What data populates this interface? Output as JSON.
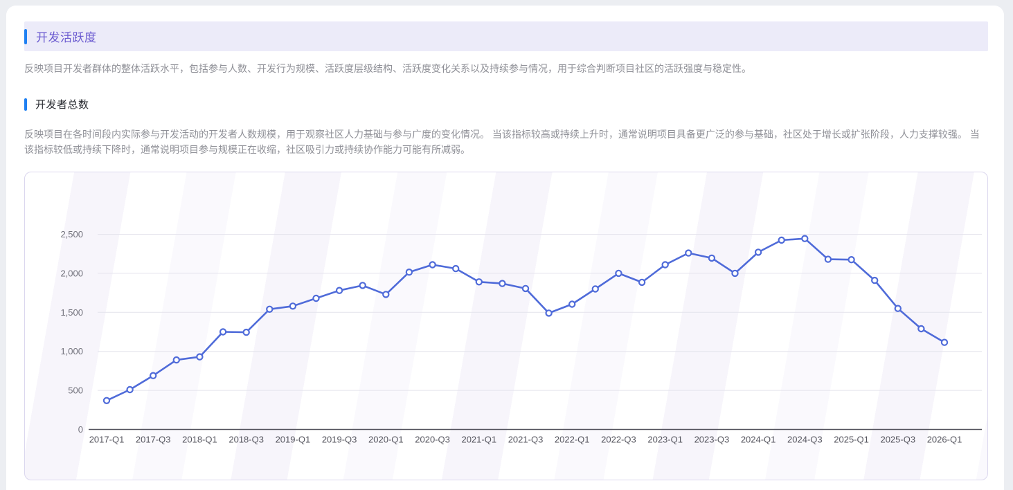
{
  "page": {
    "background_color": "#eceef2",
    "card_background_color": "#ffffff"
  },
  "section": {
    "title": "开发活跃度",
    "title_color": "#6a5ad0",
    "banner_background": "#ecebf9",
    "accent_color": "#1f80f2",
    "description": "反映项目开发者群体的整体活跃水平，包括参与人数、开发行为规模、活跃度层级结构、活跃度变化关系以及持续参与情况，用于综合判断项目社区的活跃强度与稳定性。"
  },
  "metric": {
    "title": "开发者总数",
    "description": "反映项目在各时间段内实际参与开发活动的开发者人数规模，用于观察社区人力基础与参与广度的变化情况。 当该指标较高或持续上升时，通常说明项目具备更广泛的参与基础，社区处于增长或扩张阶段，人力支撑较强。 当该指标较低或持续下降时，通常说明项目参与规模正在收缩，社区吸引力或持续协作能力可能有所减弱。"
  },
  "chart_data": {
    "type": "line",
    "title": "",
    "xlabel": "",
    "ylabel": "",
    "ylim": [
      0,
      2500
    ],
    "yticks": [
      0,
      500,
      1000,
      1500,
      2000,
      2500
    ],
    "grid": true,
    "line_color": "#4f6bd9",
    "marker_fill": "#ffffff",
    "x": [
      "2017-Q1",
      "2017-Q2",
      "2017-Q3",
      "2017-Q4",
      "2018-Q1",
      "2018-Q2",
      "2018-Q3",
      "2018-Q4",
      "2019-Q1",
      "2019-Q2",
      "2019-Q3",
      "2019-Q4",
      "2020-Q1",
      "2020-Q2",
      "2020-Q3",
      "2020-Q4",
      "2021-Q1",
      "2021-Q2",
      "2021-Q3",
      "2021-Q4",
      "2022-Q1",
      "2022-Q2",
      "2022-Q3",
      "2022-Q4",
      "2023-Q1",
      "2023-Q2",
      "2023-Q3",
      "2023-Q4",
      "2024-Q1",
      "2024-Q2",
      "2024-Q3",
      "2024-Q4",
      "2025-Q1",
      "2025-Q2",
      "2025-Q3",
      "2025-Q4",
      "2026-Q1"
    ],
    "x_tick_labels": [
      "2017-Q1",
      "2017-Q3",
      "2018-Q1",
      "2018-Q3",
      "2019-Q1",
      "2019-Q3",
      "2020-Q1",
      "2020-Q3",
      "2021-Q1",
      "2021-Q3",
      "2022-Q1",
      "2022-Q3",
      "2023-Q1",
      "2023-Q3",
      "2024-Q1",
      "2024-Q3",
      "2025-Q1",
      "2025-Q3",
      "2026-Q1"
    ],
    "series": [
      {
        "name": "开发者总数",
        "values": [
          370,
          510,
          690,
          890,
          930,
          1250,
          1245,
          1540,
          1580,
          1680,
          1780,
          1845,
          1730,
          2015,
          2110,
          2060,
          1890,
          1870,
          1805,
          1490,
          1605,
          1800,
          2000,
          1885,
          2110,
          2260,
          2195,
          2000,
          2270,
          2425,
          2445,
          2180,
          2175,
          1910,
          1550,
          1290,
          1115
        ]
      }
    ]
  }
}
